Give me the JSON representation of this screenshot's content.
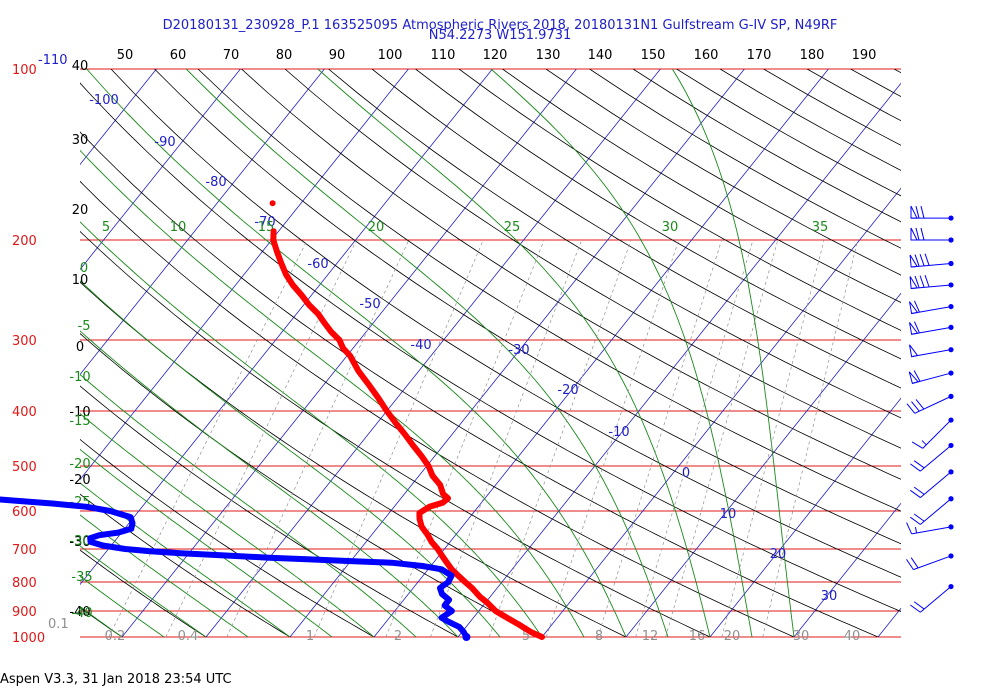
{
  "header": {
    "title_line1": "D20180131_230928_P.1 163525095 Atmospheric Rivers 2018, 20180131N1 Gulfstream G-IV SP, N49RF",
    "title_line2": "N54.2273 W151.9731"
  },
  "footer": {
    "software": "Aspen V3.3, 31 Jan 2018  23:54 UTC"
  },
  "colors": {
    "pressure_lines": "#e01818",
    "isotherms": "#2020c8",
    "dry_adiabats": "#000000",
    "moist_adiabats": "#1a8a1a",
    "mixing_ratio": "#909090",
    "temperature_trace": "#ff0000",
    "dewpoint_trace": "#0000ff",
    "wind_barbs": "#0000ff"
  },
  "chart_data": {
    "type": "skew-t",
    "pressure_levels": [
      "100",
      "200",
      "300",
      "400",
      "500",
      "600",
      "700",
      "800",
      "900",
      "1000"
    ],
    "top_axis_labels": [
      "50",
      "60",
      "70",
      "80",
      "90",
      "100",
      "110",
      "120",
      "130",
      "140",
      "150",
      "160",
      "170",
      "180",
      "190"
    ],
    "left_axis_labels": [
      "40",
      "30",
      "20",
      "10",
      "0",
      "-10",
      "-20",
      "-30",
      "-40"
    ],
    "corner_labels": {
      "pressure": "100",
      "isotherm": "-110",
      "mixing": "0.1"
    },
    "isotherm_labels": [
      "-100",
      "-90",
      "-80",
      "-70",
      "-60",
      "-50",
      "-40",
      "-30",
      "-20",
      "-10",
      "0",
      "10",
      "20",
      "30"
    ],
    "moist_labels": [
      "5",
      "10",
      "15",
      "20",
      "25",
      "30",
      "35",
      "0",
      "-5",
      "-10",
      "-15",
      "-20",
      "-25",
      "-30",
      "-35",
      "-40"
    ],
    "mixing_ratio_labels": [
      "0.2",
      "0.4",
      "1",
      "2",
      "5",
      "8",
      "12",
      "16",
      "20",
      "30",
      "40"
    ],
    "temperature_profile": [
      {
        "p": 1000,
        "t": 10.0
      },
      {
        "p": 980,
        "t": 8.2
      },
      {
        "p": 950,
        "t": 6.0
      },
      {
        "p": 920,
        "t": 3.6
      },
      {
        "p": 900,
        "t": 2.0
      },
      {
        "p": 870,
        "t": 0.2
      },
      {
        "p": 850,
        "t": -1.2
      },
      {
        "p": 820,
        "t": -3.0
      },
      {
        "p": 800,
        "t": -4.4
      },
      {
        "p": 780,
        "t": -5.8
      },
      {
        "p": 760,
        "t": -7.2
      },
      {
        "p": 740,
        "t": -8.4
      },
      {
        "p": 720,
        "t": -9.6
      },
      {
        "p": 700,
        "t": -10.8
      },
      {
        "p": 680,
        "t": -12.2
      },
      {
        "p": 660,
        "t": -13.4
      },
      {
        "p": 640,
        "t": -14.8
      },
      {
        "p": 620,
        "t": -15.8
      },
      {
        "p": 605,
        "t": -16.4
      },
      {
        "p": 590,
        "t": -15.8
      },
      {
        "p": 580,
        "t": -14.6
      },
      {
        "p": 570,
        "t": -14.4
      },
      {
        "p": 560,
        "t": -15.4
      },
      {
        "p": 540,
        "t": -16.6
      },
      {
        "p": 520,
        "t": -18.4
      },
      {
        "p": 500,
        "t": -19.8
      },
      {
        "p": 480,
        "t": -21.6
      },
      {
        "p": 460,
        "t": -23.6
      },
      {
        "p": 440,
        "t": -25.6
      },
      {
        "p": 420,
        "t": -27.8
      },
      {
        "p": 400,
        "t": -30.0
      },
      {
        "p": 380,
        "t": -32.2
      },
      {
        "p": 360,
        "t": -34.6
      },
      {
        "p": 340,
        "t": -37.2
      },
      {
        "p": 320,
        "t": -39.6
      },
      {
        "p": 310,
        "t": -41.2
      },
      {
        "p": 300,
        "t": -42.4
      },
      {
        "p": 290,
        "t": -44.2
      },
      {
        "p": 280,
        "t": -45.8
      },
      {
        "p": 270,
        "t": -47.4
      },
      {
        "p": 260,
        "t": -49.4
      },
      {
        "p": 250,
        "t": -51.2
      },
      {
        "p": 240,
        "t": -53.2
      },
      {
        "p": 230,
        "t": -55.0
      },
      {
        "p": 220,
        "t": -56.6
      },
      {
        "p": 210,
        "t": -58.2
      },
      {
        "p": 200,
        "t": -59.8
      },
      {
        "p": 193,
        "t": -60.6
      }
    ],
    "dewpoint_profile": [
      {
        "p": 1000,
        "t": 1.0
      },
      {
        "p": 980,
        "t": 0.2
      },
      {
        "p": 960,
        "t": -0.8
      },
      {
        "p": 940,
        "t": -2.6
      },
      {
        "p": 925,
        "t": -3.8
      },
      {
        "p": 900,
        "t": -3.2
      },
      {
        "p": 880,
        "t": -4.6
      },
      {
        "p": 860,
        "t": -4.6
      },
      {
        "p": 840,
        "t": -6.0
      },
      {
        "p": 820,
        "t": -6.8
      },
      {
        "p": 800,
        "t": -6.4
      },
      {
        "p": 780,
        "t": -6.6
      },
      {
        "p": 760,
        "t": -8.4
      },
      {
        "p": 750,
        "t": -11.0
      },
      {
        "p": 740,
        "t": -15.0
      },
      {
        "p": 735,
        "t": -20.0
      },
      {
        "p": 730,
        "t": -25.0
      },
      {
        "p": 725,
        "t": -30.0
      },
      {
        "p": 718,
        "t": -36.0
      },
      {
        "p": 712,
        "t": -41.0
      },
      {
        "p": 706,
        "t": -45.0
      },
      {
        "p": 700,
        "t": -48.0
      },
      {
        "p": 690,
        "t": -51.0
      },
      {
        "p": 680,
        "t": -52.8
      },
      {
        "p": 670,
        "t": -53.2
      },
      {
        "p": 662,
        "t": -52.4
      },
      {
        "p": 655,
        "t": -50.4
      },
      {
        "p": 645,
        "t": -49.2
      },
      {
        "p": 630,
        "t": -49.6
      },
      {
        "p": 615,
        "t": -50.4
      },
      {
        "p": 600,
        "t": -53.4
      },
      {
        "p": 590,
        "t": -56.6
      },
      {
        "p": 582,
        "t": -61.0
      },
      {
        "p": 575,
        "t": -66.0
      },
      {
        "p": 568,
        "t": -71.0
      },
      {
        "p": 562,
        "t": -75.0
      }
    ],
    "wind_barbs": [
      {
        "p": 183,
        "speed_kt": 70,
        "dir_deg": 270
      },
      {
        "p": 200,
        "speed_kt": 70,
        "dir_deg": 270
      },
      {
        "p": 220,
        "speed_kt": 80,
        "dir_deg": 265
      },
      {
        "p": 240,
        "speed_kt": 80,
        "dir_deg": 265
      },
      {
        "p": 262,
        "speed_kt": 60,
        "dir_deg": 260
      },
      {
        "p": 285,
        "speed_kt": 60,
        "dir_deg": 260
      },
      {
        "p": 312,
        "speed_kt": 50,
        "dir_deg": 260
      },
      {
        "p": 343,
        "speed_kt": 60,
        "dir_deg": 255
      },
      {
        "p": 377,
        "speed_kt": 30,
        "dir_deg": 245
      },
      {
        "p": 415,
        "speed_kt": 15,
        "dir_deg": 225
      },
      {
        "p": 460,
        "speed_kt": 20,
        "dir_deg": 230
      },
      {
        "p": 512,
        "speed_kt": 20,
        "dir_deg": 230
      },
      {
        "p": 571,
        "speed_kt": 20,
        "dir_deg": 230
      },
      {
        "p": 640,
        "speed_kt": 15,
        "dir_deg": 260
      },
      {
        "p": 720,
        "speed_kt": 20,
        "dir_deg": 250
      },
      {
        "p": 815,
        "speed_kt": 20,
        "dir_deg": 230
      }
    ]
  }
}
